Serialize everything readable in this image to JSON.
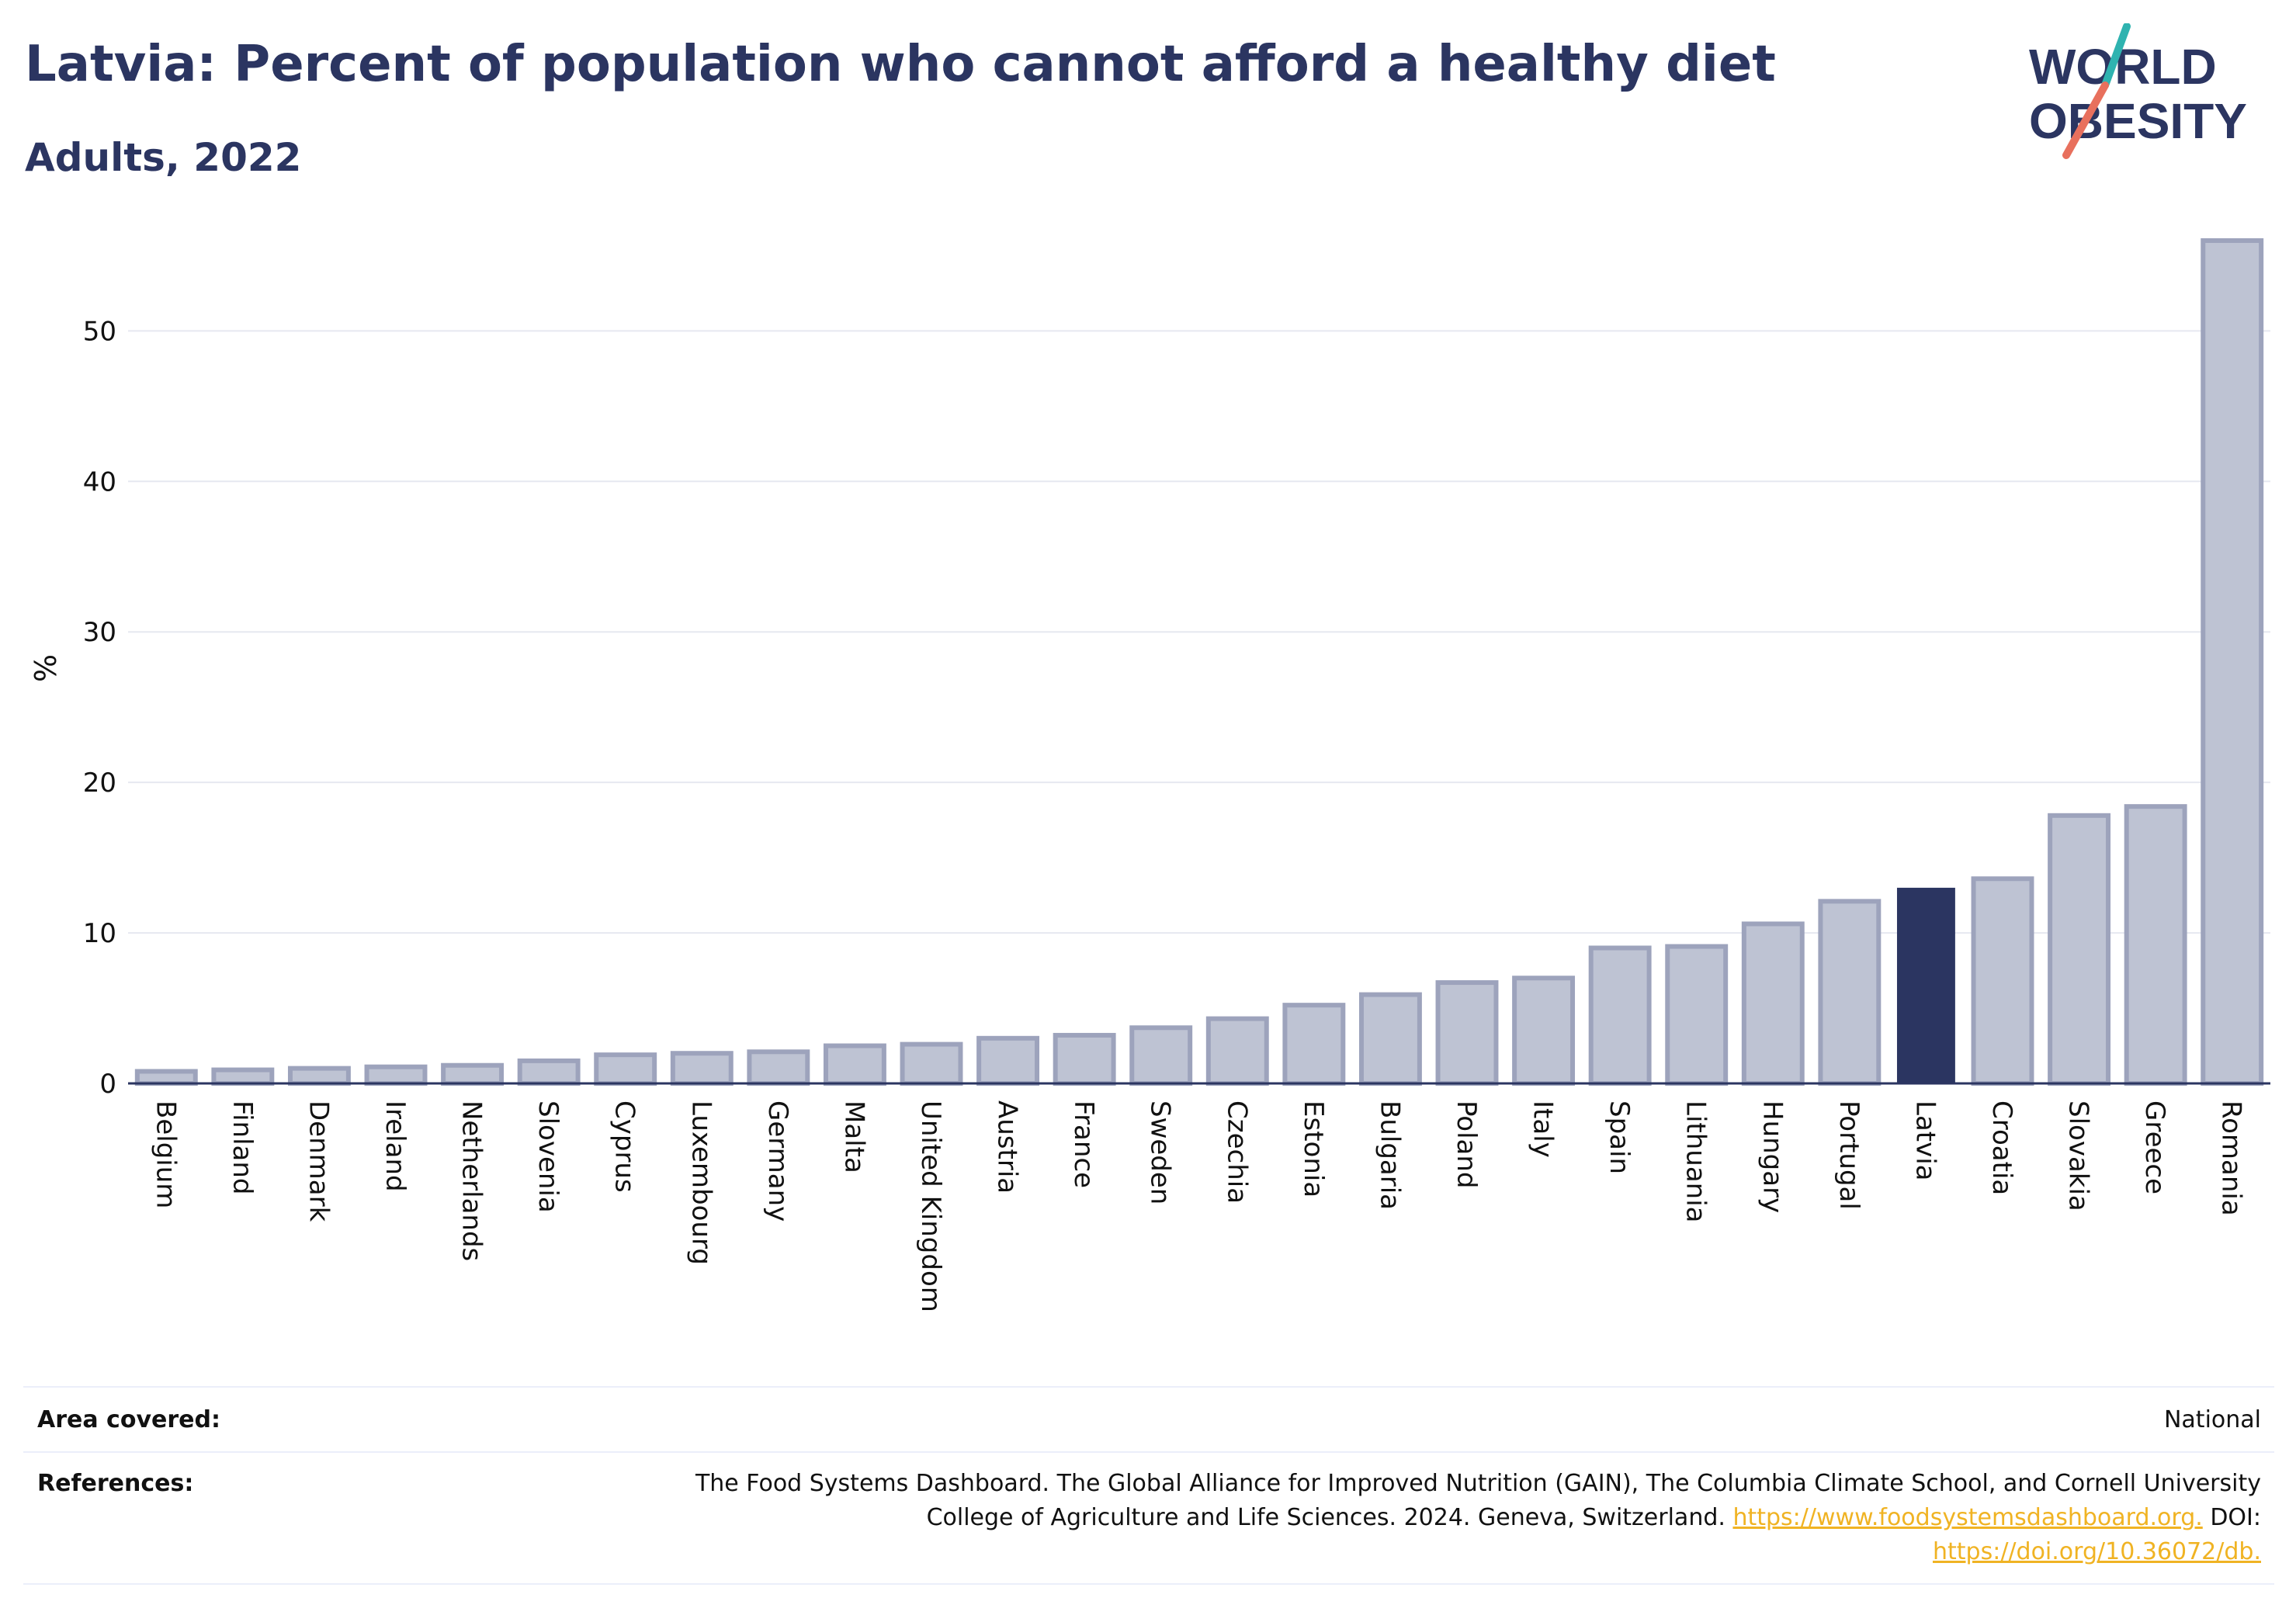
{
  "header": {
    "title": "Latvia: Percent of population who cannot afford a healthy diet",
    "subtitle": "Adults, 2022"
  },
  "logo": {
    "line1": "WORLD",
    "line2": "OBESITY"
  },
  "colors": {
    "title": "#2b3561",
    "bar_default": "#bec3d3",
    "bar_default_stroke": "#9da3bc",
    "bar_highlight": "#2b3561",
    "grid": "#e6e8f0",
    "axis": "#2b3561",
    "link": "#f0b323",
    "logo_teal": "#2fb3b0",
    "logo_coral": "#e8705d"
  },
  "chart_data": {
    "type": "bar",
    "title": "Latvia: Percent of population who cannot afford a healthy diet",
    "subtitle": "Adults, 2022",
    "xlabel": "",
    "ylabel": "%",
    "ylim": [
      0,
      56
    ],
    "yticks": [
      0,
      10,
      20,
      30,
      40,
      50
    ],
    "grid": true,
    "highlight": "Latvia",
    "categories": [
      "Belgium",
      "Finland",
      "Denmark",
      "Ireland",
      "Netherlands",
      "Slovenia",
      "Cyprus",
      "Luxembourg",
      "Germany",
      "Malta",
      "United Kingdom",
      "Austria",
      "France",
      "Sweden",
      "Czechia",
      "Estonia",
      "Bulgaria",
      "Poland",
      "Italy",
      "Spain",
      "Lithuania",
      "Hungary",
      "Portugal",
      "Latvia",
      "Croatia",
      "Slovakia",
      "Greece",
      "Romania"
    ],
    "values": [
      0.8,
      0.9,
      1.0,
      1.1,
      1.2,
      1.5,
      1.9,
      2.0,
      2.1,
      2.5,
      2.6,
      3.0,
      3.2,
      3.7,
      4.3,
      5.2,
      5.9,
      6.7,
      7.0,
      9.0,
      9.1,
      10.6,
      12.1,
      13.0,
      13.6,
      17.8,
      18.4,
      56.0
    ]
  },
  "footer": {
    "area_label": "Area covered:",
    "area_value": "National",
    "references_label": "References:",
    "references_text": "The Food Systems Dashboard. The Global Alliance for Improved Nutrition (GAIN), The Columbia Climate School, and Cornell University College of Agriculture and Life Sciences. 2024. Geneva, Switzerland.",
    "references_link1": "https://www.foodsystemsdashboard.org.",
    "references_doi_label": "DOI:",
    "references_link2": "https://doi.org/10.36072/db."
  }
}
